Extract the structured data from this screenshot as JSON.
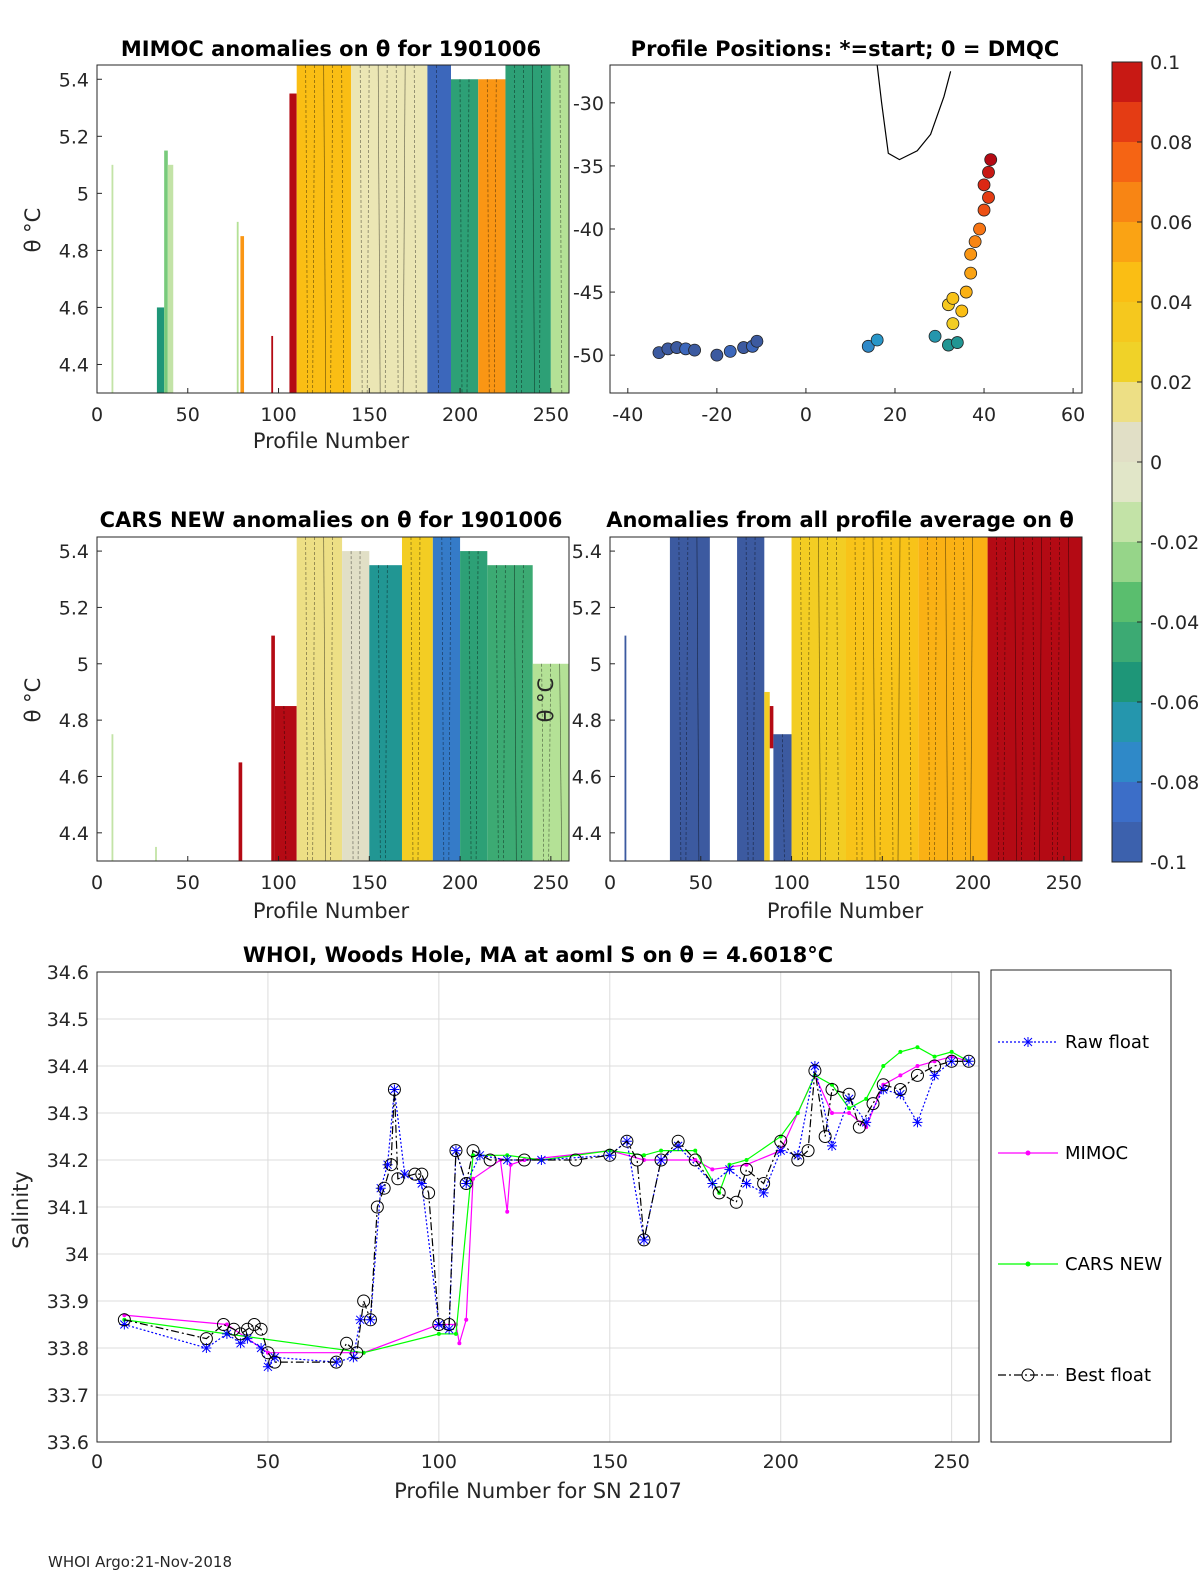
{
  "chart_data": [
    {
      "id": "mimoc-anom",
      "type": "heatmap",
      "title": "MIMOC anomalies on θ  for 1901006",
      "xlabel": "Profile Number",
      "ylabel": "θ °C",
      "xlim": [
        0,
        260
      ],
      "ylim": [
        4.3,
        5.45
      ],
      "xticks": [
        0,
        50,
        100,
        150,
        200,
        250
      ],
      "yticks": [
        4.4,
        4.6,
        4.8,
        5,
        5.2,
        5.4
      ],
      "ytick_labels": [
        "4.4",
        "4.6",
        "4.8",
        "5",
        "5.2",
        "5.4"
      ],
      "columns": [
        {
          "x0": 8,
          "x1": 9,
          "y0": 4.3,
          "y1": 5.1,
          "v": -0.015
        },
        {
          "x0": 33,
          "x1": 37,
          "y0": 4.3,
          "y1": 4.6,
          "v": -0.055
        },
        {
          "x0": 37,
          "x1": 39,
          "y0": 4.3,
          "y1": 5.15,
          "v": -0.03
        },
        {
          "x0": 39,
          "x1": 42,
          "y0": 4.3,
          "y1": 5.1,
          "v": -0.015
        },
        {
          "x0": 77,
          "x1": 78,
          "y0": 4.3,
          "y1": 4.9,
          "v": -0.02
        },
        {
          "x0": 79,
          "x1": 81,
          "y0": 4.3,
          "y1": 4.85,
          "v": 0.06
        },
        {
          "x0": 96,
          "x1": 97,
          "y0": 4.3,
          "y1": 4.5,
          "v": 0.1
        },
        {
          "x0": 106,
          "x1": 110,
          "y0": 4.3,
          "y1": 5.35,
          "v": 0.1
        },
        {
          "x0": 110,
          "x1": 140,
          "y0": 4.3,
          "y1": 5.45,
          "v": 0.045
        },
        {
          "x0": 140,
          "x1": 182,
          "y0": 4.3,
          "y1": 5.45,
          "v": 0.01
        },
        {
          "x0": 182,
          "x1": 195,
          "y0": 4.3,
          "y1": 5.45,
          "v": -0.09
        },
        {
          "x0": 195,
          "x1": 210,
          "y0": 4.3,
          "y1": 5.4,
          "v": -0.05
        },
        {
          "x0": 210,
          "x1": 225,
          "y0": 4.3,
          "y1": 5.4,
          "v": 0.06
        },
        {
          "x0": 225,
          "x1": 250,
          "y0": 4.3,
          "y1": 5.45,
          "v": -0.05
        },
        {
          "x0": 250,
          "x1": 260,
          "y0": 4.3,
          "y1": 5.45,
          "v": -0.02
        }
      ]
    },
    {
      "id": "positions",
      "type": "scatter",
      "title": "Profile Positions: *=start; 0 = DMQC",
      "xlim": [
        -44,
        62
      ],
      "ylim": [
        -53,
        -27
      ],
      "xticks": [
        -40,
        -20,
        0,
        20,
        40,
        60
      ],
      "yticks": [
        -50,
        -45,
        -40,
        -35,
        -30
      ],
      "points": [
        {
          "lon": -33,
          "lat": -49.8,
          "v": -0.1
        },
        {
          "lon": -31,
          "lat": -49.5,
          "v": -0.1
        },
        {
          "lon": -29,
          "lat": -49.4,
          "v": -0.1
        },
        {
          "lon": -27,
          "lat": -49.5,
          "v": -0.09
        },
        {
          "lon": -25,
          "lat": -49.6,
          "v": -0.1
        },
        {
          "lon": -20,
          "lat": -50.0,
          "v": -0.1
        },
        {
          "lon": -17,
          "lat": -49.7,
          "v": -0.09
        },
        {
          "lon": -14,
          "lat": -49.4,
          "v": -0.1
        },
        {
          "lon": -12,
          "lat": -49.3,
          "v": -0.09
        },
        {
          "lon": -11,
          "lat": -48.9,
          "v": -0.1
        },
        {
          "lon": 14,
          "lat": -49.3,
          "v": -0.075
        },
        {
          "lon": 16,
          "lat": -48.8,
          "v": -0.07
        },
        {
          "lon": 29,
          "lat": -48.5,
          "v": -0.065
        },
        {
          "lon": 32,
          "lat": -49.2,
          "v": -0.06
        },
        {
          "lon": 34,
          "lat": -49.0,
          "v": -0.06
        },
        {
          "lon": 33,
          "lat": -47.5,
          "v": 0.03
        },
        {
          "lon": 32,
          "lat": -46.0,
          "v": 0.035
        },
        {
          "lon": 33,
          "lat": -45.5,
          "v": 0.04
        },
        {
          "lon": 35,
          "lat": -46.5,
          "v": 0.045
        },
        {
          "lon": 36,
          "lat": -45.0,
          "v": 0.05
        },
        {
          "lon": 37,
          "lat": -43.5,
          "v": 0.055
        },
        {
          "lon": 37,
          "lat": -42.0,
          "v": 0.06
        },
        {
          "lon": 38,
          "lat": -41.0,
          "v": 0.065
        },
        {
          "lon": 39,
          "lat": -40.0,
          "v": 0.07
        },
        {
          "lon": 40,
          "lat": -38.5,
          "v": 0.08
        },
        {
          "lon": 41,
          "lat": -37.5,
          "v": 0.085
        },
        {
          "lon": 40,
          "lat": -36.5,
          "v": 0.09
        },
        {
          "lon": 41,
          "lat": -35.5,
          "v": 0.095
        },
        {
          "lon": 41.5,
          "lat": -34.5,
          "v": 0.1
        }
      ]
    },
    {
      "id": "cars-anom",
      "type": "heatmap",
      "title": "CARS NEW anomalies on θ for 1901006",
      "xlabel": "Profile Number",
      "ylabel": "θ °C",
      "xlim": [
        0,
        260
      ],
      "ylim": [
        4.3,
        5.45
      ],
      "xticks": [
        0,
        50,
        100,
        150,
        200,
        250
      ],
      "yticks": [
        4.4,
        4.6,
        4.8,
        5,
        5.2,
        5.4
      ],
      "ytick_labels": [
        "4.4",
        "4.6",
        "4.8",
        "5",
        "5.2",
        "5.4"
      ],
      "columns": [
        {
          "x0": 8,
          "x1": 9,
          "y0": 4.3,
          "y1": 4.75,
          "v": -0.015
        },
        {
          "x0": 32,
          "x1": 33,
          "y0": 4.3,
          "y1": 4.35,
          "v": -0.015
        },
        {
          "x0": 78,
          "x1": 80,
          "y0": 4.3,
          "y1": 4.65,
          "v": 0.1
        },
        {
          "x0": 96,
          "x1": 98,
          "y0": 4.3,
          "y1": 5.1,
          "v": 0.1
        },
        {
          "x0": 98,
          "x1": 110,
          "y0": 4.3,
          "y1": 4.85,
          "v": 0.1
        },
        {
          "x0": 110,
          "x1": 135,
          "y0": 4.3,
          "y1": 5.45,
          "v": 0.015
        },
        {
          "x0": 135,
          "x1": 150,
          "y0": 4.3,
          "y1": 5.4,
          "v": 0.005
        },
        {
          "x0": 150,
          "x1": 168,
          "y0": 4.3,
          "y1": 5.35,
          "v": -0.06
        },
        {
          "x0": 168,
          "x1": 185,
          "y0": 4.3,
          "y1": 5.45,
          "v": 0.03
        },
        {
          "x0": 185,
          "x1": 200,
          "y0": 4.3,
          "y1": 5.45,
          "v": -0.08
        },
        {
          "x0": 200,
          "x1": 215,
          "y0": 4.3,
          "y1": 5.4,
          "v": -0.05
        },
        {
          "x0": 215,
          "x1": 240,
          "y0": 4.3,
          "y1": 5.35,
          "v": -0.045
        },
        {
          "x0": 240,
          "x1": 260,
          "y0": 4.3,
          "y1": 5.0,
          "v": -0.02
        }
      ]
    },
    {
      "id": "all-avg-anom",
      "type": "heatmap",
      "title": "Anomalies from all profile average on θ",
      "xlabel": "Profile Number",
      "ylabel": "θ °C",
      "xlim": [
        0,
        260
      ],
      "ylim": [
        4.3,
        5.45
      ],
      "xticks": [
        0,
        50,
        100,
        150,
        200,
        250
      ],
      "yticks": [
        4.4,
        4.6,
        4.8,
        5,
        5.2,
        5.4
      ],
      "ytick_labels": [
        "4.4",
        "4.6",
        "4.8",
        "5",
        "5.2",
        "5.4"
      ],
      "columns": [
        {
          "x0": 8,
          "x1": 9,
          "y0": 4.3,
          "y1": 5.1,
          "v": -0.1
        },
        {
          "x0": 33,
          "x1": 55,
          "y0": 4.3,
          "y1": 5.45,
          "v": -0.1
        },
        {
          "x0": 70,
          "x1": 85,
          "y0": 4.3,
          "y1": 5.45,
          "v": -0.1
        },
        {
          "x0": 85,
          "x1": 88,
          "y0": 4.3,
          "y1": 4.9,
          "v": 0.03
        },
        {
          "x0": 88,
          "x1": 90,
          "y0": 4.7,
          "y1": 4.85,
          "v": 0.1
        },
        {
          "x0": 90,
          "x1": 100,
          "y0": 4.3,
          "y1": 4.75,
          "v": -0.1
        },
        {
          "x0": 100,
          "x1": 130,
          "y0": 4.3,
          "y1": 5.45,
          "v": 0.03
        },
        {
          "x0": 130,
          "x1": 170,
          "y0": 4.3,
          "y1": 5.45,
          "v": 0.04
        },
        {
          "x0": 170,
          "x1": 208,
          "y0": 4.3,
          "y1": 5.45,
          "v": 0.05
        },
        {
          "x0": 208,
          "x1": 260,
          "y0": 4.3,
          "y1": 5.45,
          "v": 0.1
        }
      ]
    },
    {
      "id": "salinity",
      "type": "line",
      "title": "WHOI, Woods Hole, MA at aoml S on θ = 4.6018°C",
      "xlabel": "Profile Number for SN 2107",
      "ylabel": "Salinity",
      "xlim": [
        0,
        258
      ],
      "ylim": [
        33.6,
        34.6
      ],
      "xticks": [
        0,
        50,
        100,
        150,
        200,
        250
      ],
      "yticks": [
        33.6,
        33.7,
        33.8,
        33.9,
        34.0,
        34.1,
        34.2,
        34.3,
        34.4,
        34.5,
        34.6
      ],
      "ytick_labels": [
        "33.6",
        "33.7",
        "33.8",
        "33.9",
        "34",
        "34.1",
        "34.2",
        "34.3",
        "34.4",
        "34.5",
        "34.6"
      ],
      "series": [
        {
          "name": "Raw float",
          "color": "#0000ff",
          "dash": "2,2",
          "marker": "star",
          "x": [
            8,
            32,
            38,
            42,
            44,
            48,
            50,
            52,
            70,
            75,
            77,
            80,
            83,
            85,
            87,
            90,
            95,
            100,
            103,
            105,
            108,
            112,
            120,
            130,
            150,
            155,
            160,
            165,
            170,
            180,
            185,
            190,
            195,
            200,
            205,
            210,
            215,
            220,
            225,
            230,
            235,
            240,
            245,
            250,
            255
          ],
          "y": [
            33.85,
            33.8,
            33.83,
            33.81,
            33.82,
            33.8,
            33.76,
            33.78,
            33.77,
            33.78,
            33.86,
            33.86,
            34.14,
            34.19,
            34.35,
            34.17,
            34.15,
            33.85,
            33.84,
            34.22,
            34.15,
            34.21,
            34.2,
            34.2,
            34.21,
            34.24,
            34.03,
            34.2,
            34.23,
            34.15,
            34.18,
            34.15,
            34.13,
            34.22,
            34.21,
            34.4,
            34.23,
            34.33,
            34.28,
            34.35,
            34.34,
            34.28,
            34.38,
            34.41,
            34.41
          ]
        },
        {
          "name": "MIMOC",
          "color": "#ff00ff",
          "dash": "",
          "marker": "dot",
          "x": [
            8,
            38,
            50,
            78,
            100,
            105,
            106,
            108,
            110,
            118,
            120,
            121,
            125,
            150,
            160,
            165,
            175,
            180,
            190,
            200,
            210,
            215,
            220,
            225,
            230,
            235,
            240,
            245,
            250,
            255
          ],
          "y": [
            33.87,
            33.85,
            33.79,
            33.79,
            33.85,
            33.85,
            33.81,
            33.86,
            34.16,
            34.2,
            34.09,
            34.19,
            34.2,
            34.22,
            34.2,
            34.2,
            34.2,
            34.18,
            34.19,
            34.22,
            34.38,
            34.3,
            34.3,
            34.27,
            34.36,
            34.38,
            34.4,
            34.41,
            34.42,
            34.41
          ]
        },
        {
          "name": "CARS NEW",
          "color": "#00ff00",
          "dash": "",
          "marker": "dot",
          "x": [
            8,
            38,
            78,
            100,
            105,
            110,
            120,
            130,
            150,
            160,
            165,
            175,
            182,
            185,
            190,
            200,
            205,
            210,
            215,
            220,
            225,
            230,
            235,
            240,
            245,
            250,
            255
          ],
          "y": [
            33.86,
            33.83,
            33.79,
            33.83,
            33.83,
            34.21,
            34.21,
            34.2,
            34.22,
            34.21,
            34.22,
            34.22,
            34.13,
            34.19,
            34.2,
            34.25,
            34.3,
            34.38,
            34.36,
            34.31,
            34.33,
            34.4,
            34.43,
            34.44,
            34.42,
            34.43,
            34.41
          ]
        },
        {
          "name": "Best float",
          "color": "#000000",
          "dash": "8,3,2,3",
          "marker": "circle",
          "x": [
            8,
            32,
            37,
            40,
            42,
            44,
            46,
            48,
            50,
            52,
            70,
            73,
            76,
            78,
            80,
            82,
            84,
            86,
            87,
            88,
            93,
            95,
            97,
            100,
            103,
            105,
            108,
            110,
            115,
            125,
            140,
            150,
            155,
            158,
            160,
            165,
            170,
            175,
            182,
            187,
            190,
            195,
            200,
            205,
            208,
            210,
            213,
            215,
            220,
            223,
            227,
            230,
            235,
            240,
            245,
            250,
            255
          ],
          "y": [
            33.86,
            33.82,
            33.85,
            33.84,
            33.83,
            33.84,
            33.85,
            33.84,
            33.79,
            33.77,
            33.77,
            33.81,
            33.79,
            33.9,
            33.86,
            34.1,
            34.14,
            34.19,
            34.35,
            34.16,
            34.17,
            34.17,
            34.13,
            33.85,
            33.85,
            34.22,
            34.15,
            34.22,
            34.2,
            34.2,
            34.2,
            34.21,
            34.24,
            34.2,
            34.03,
            34.2,
            34.24,
            34.2,
            34.13,
            34.11,
            34.18,
            34.15,
            34.24,
            34.2,
            34.22,
            34.39,
            34.25,
            34.35,
            34.34,
            34.27,
            34.32,
            34.36,
            34.35,
            34.38,
            34.4,
            34.41,
            34.41
          ]
        }
      ]
    }
  ],
  "colorbar": {
    "range": [
      -0.1,
      0.1
    ],
    "tick_values": [
      0.1,
      0.08,
      0.06,
      0.04,
      0.02,
      0,
      -0.02,
      -0.04,
      -0.06,
      -0.08,
      -0.1
    ],
    "tick_labels": [
      "0.1",
      "0.08",
      "0.06",
      "0.04",
      "0.02",
      "0",
      "-0.02",
      "-0.04",
      "-0.06",
      "-0.08",
      "-0.1"
    ]
  },
  "legend": {
    "items": [
      "Raw float",
      "MIMOC",
      "CARS NEW",
      "Best float"
    ]
  },
  "footer": "WHOI Argo:21-Nov-2018"
}
